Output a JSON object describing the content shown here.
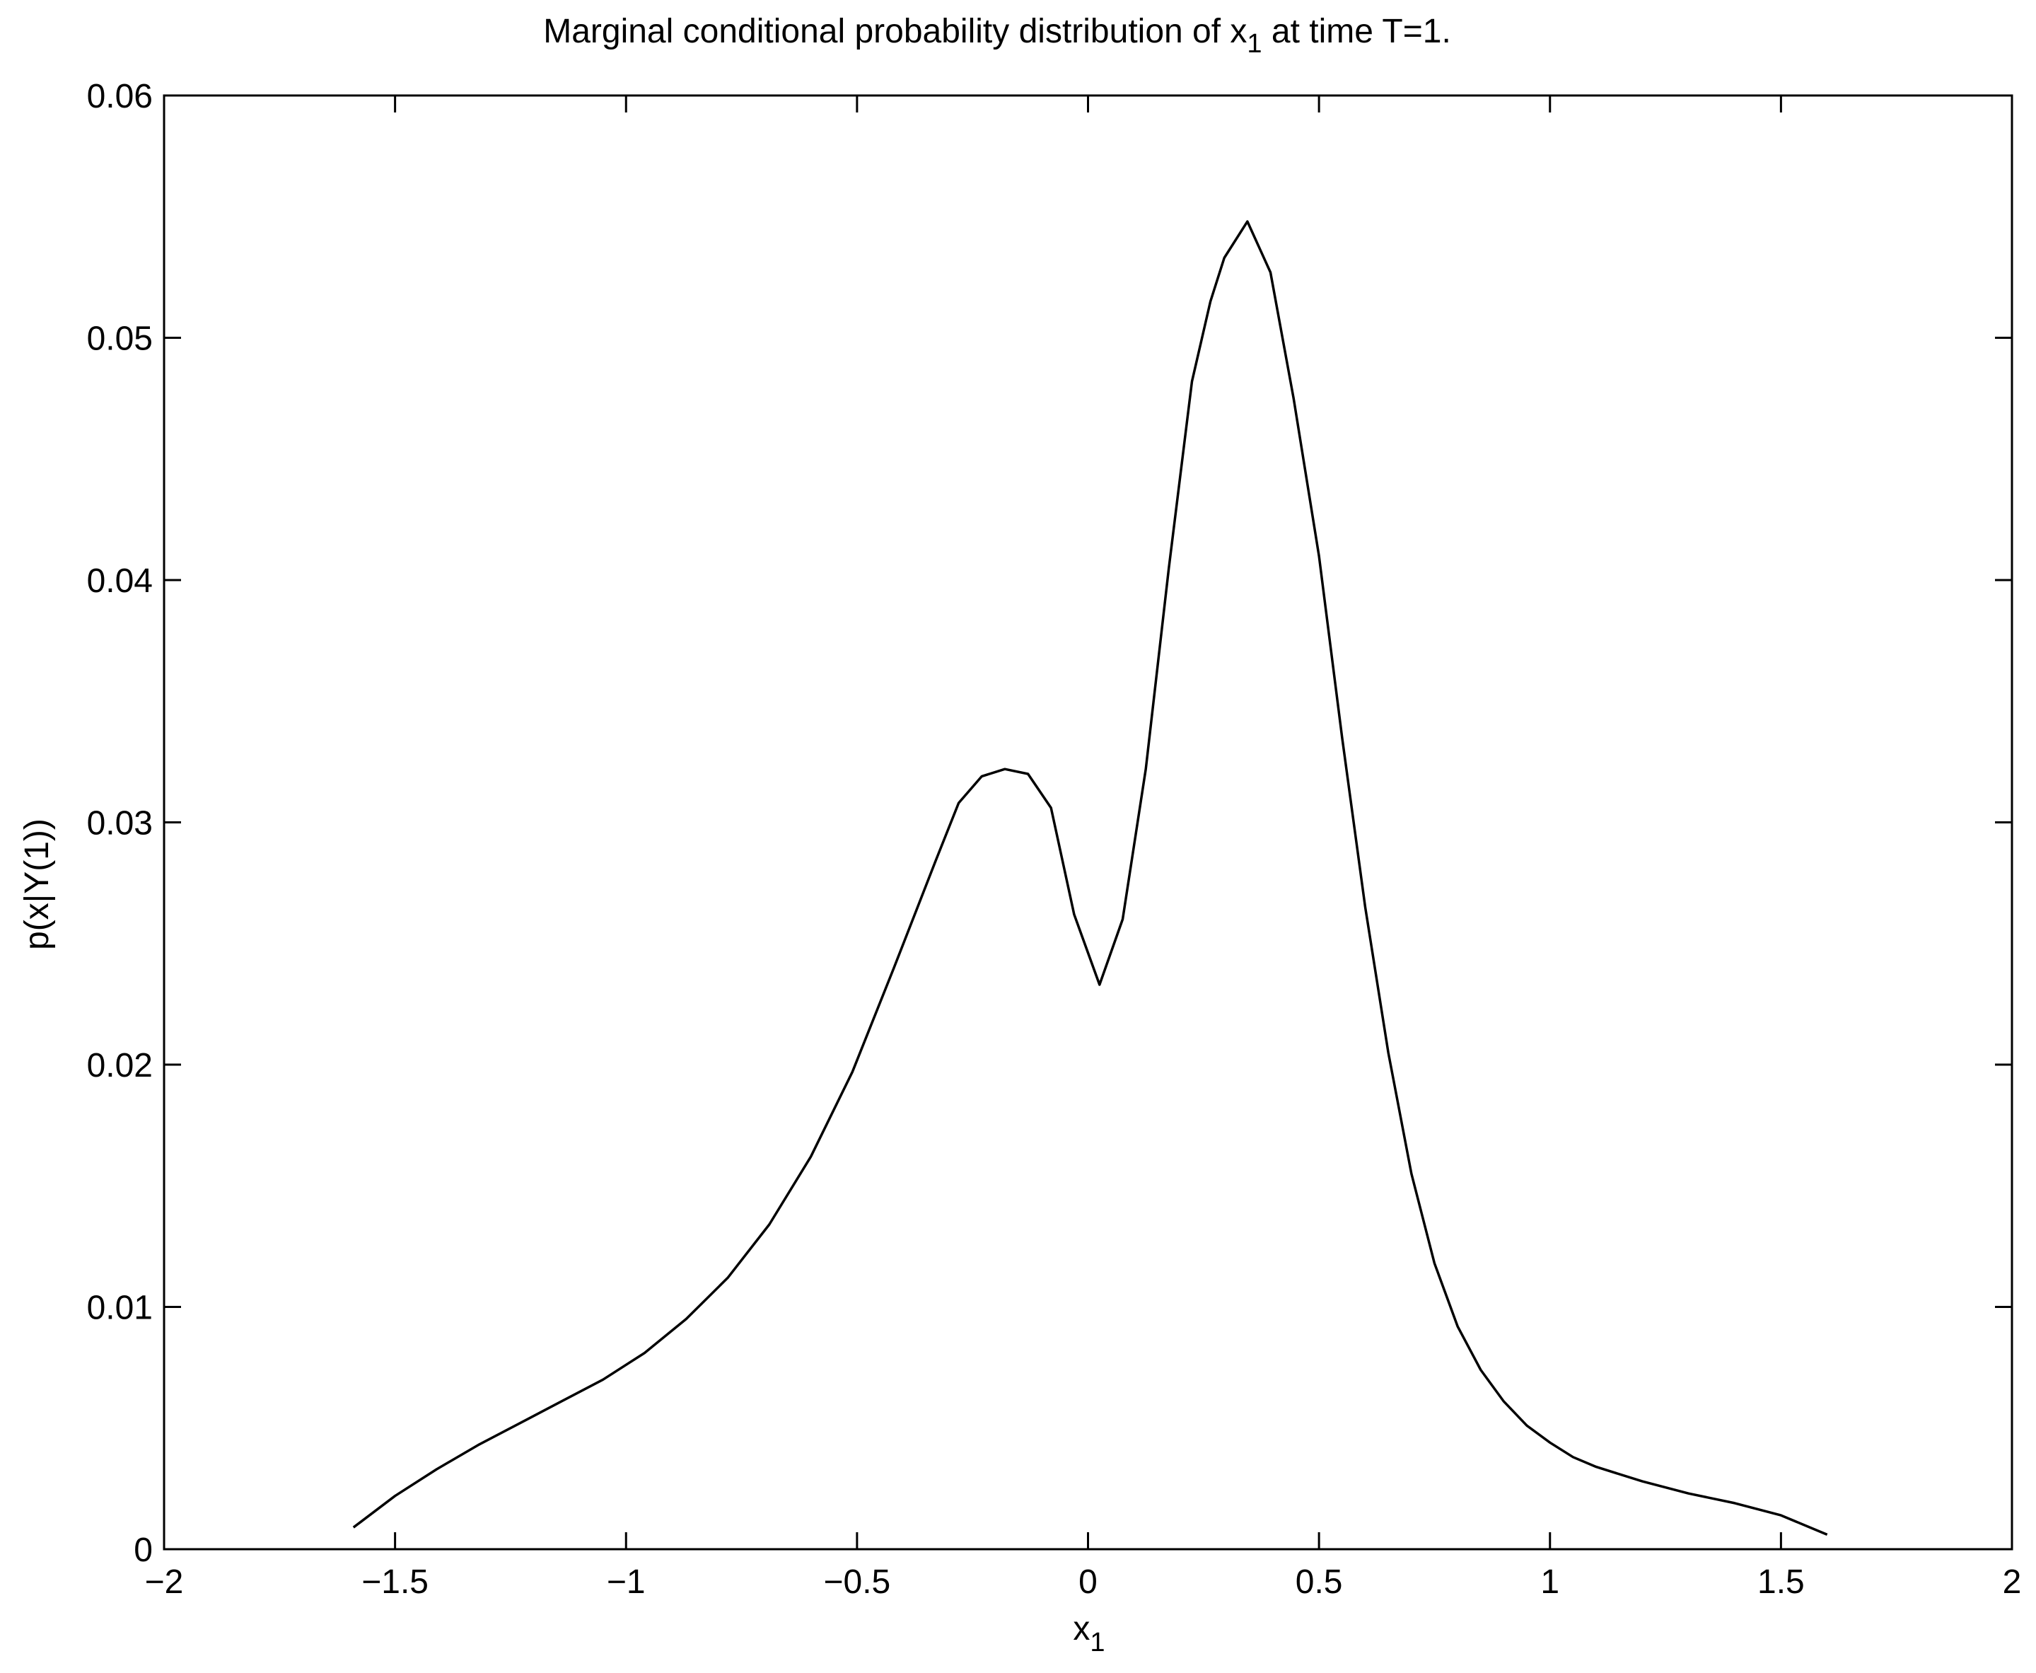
{
  "chart_data": {
    "type": "line",
    "title": {
      "prefix": "Marginal conditional probability distribution of x",
      "subscript": "1",
      "suffix": " at time T=1."
    },
    "xlabel": {
      "main": "x",
      "subscript": "1"
    },
    "ylabel": "p(x|Y(1))",
    "xlim": [
      -2,
      2
    ],
    "ylim": [
      0,
      0.06
    ],
    "xticks": [
      -2,
      -1.5,
      -1,
      -0.5,
      0,
      0.5,
      1,
      1.5,
      2
    ],
    "xtick_labels": [
      "−2",
      "−1.5",
      "−1",
      "−0.5",
      "0",
      "0.5",
      "1",
      "1.5",
      "2"
    ],
    "yticks": [
      0,
      0.01,
      0.02,
      0.03,
      0.04,
      0.05,
      0.06
    ],
    "ytick_labels": [
      "0",
      "0.01",
      "0.02",
      "0.03",
      "0.04",
      "0.05",
      "0.06"
    ],
    "grid": false,
    "box": true,
    "line_color": "#000000",
    "series": [
      {
        "x": [
          -1.59,
          -1.5,
          -1.41,
          -1.32,
          -1.23,
          -1.14,
          -1.05,
          -0.96,
          -0.87,
          -0.78,
          -0.69,
          -0.6,
          -0.51,
          -0.42,
          -0.33,
          -0.28,
          -0.23,
          -0.18,
          -0.13,
          -0.08,
          -0.03,
          0.025,
          0.075,
          0.125,
          0.175,
          0.225,
          0.265,
          0.295,
          0.345,
          0.395,
          0.445,
          0.5,
          0.55,
          0.6,
          0.65,
          0.7,
          0.75,
          0.8,
          0.85,
          0.9,
          0.95,
          1.0,
          1.05,
          1.1,
          1.2,
          1.3,
          1.4,
          1.5,
          1.6
        ],
        "y": [
          0.0009,
          0.0022,
          0.0033,
          0.0043,
          0.0052,
          0.0061,
          0.007,
          0.0081,
          0.0095,
          0.0112,
          0.0134,
          0.0162,
          0.0197,
          0.024,
          0.0284,
          0.0308,
          0.0319,
          0.0322,
          0.032,
          0.0306,
          0.0262,
          0.0233,
          0.026,
          0.0322,
          0.0405,
          0.0482,
          0.0515,
          0.0533,
          0.0548,
          0.0527,
          0.0475,
          0.041,
          0.0335,
          0.0265,
          0.0205,
          0.0155,
          0.0118,
          0.0092,
          0.0074,
          0.0061,
          0.0051,
          0.0044,
          0.0038,
          0.0034,
          0.0028,
          0.0023,
          0.0019,
          0.0014,
          0.0006
        ]
      }
    ]
  }
}
